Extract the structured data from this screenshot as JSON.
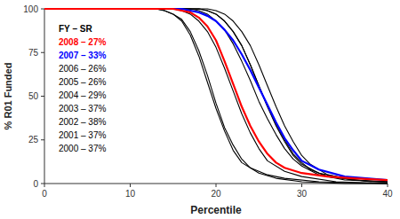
{
  "chart_data": {
    "type": "line",
    "xlabel": "Percentile",
    "ylabel": "% R01 Funded",
    "xlim": [
      0,
      40
    ],
    "ylim": [
      0,
      100
    ],
    "xticks": [
      0,
      10,
      20,
      30,
      40
    ],
    "yticks": [
      0,
      25,
      50,
      75,
      100
    ],
    "grid": false,
    "legend_title": "FY – SR",
    "series": [
      {
        "name": "2008 – 27%",
        "color": "#ff0000",
        "x": [
          0,
          15,
          16,
          17,
          18,
          19,
          20,
          21,
          22,
          23,
          24,
          25,
          26,
          27,
          28,
          30,
          33,
          36,
          40
        ],
        "values": [
          100,
          100,
          99,
          98,
          95,
          90,
          82,
          70,
          57,
          44,
          33,
          24,
          17,
          12,
          9,
          6,
          4,
          3,
          2
        ]
      },
      {
        "name": "2007 – 33%",
        "color": "#0000ff",
        "x": [
          0,
          16,
          17,
          18,
          19,
          20,
          21,
          22,
          23,
          24,
          25,
          26,
          27,
          28,
          29,
          30,
          32,
          35,
          40
        ],
        "values": [
          100,
          100,
          99,
          98,
          96,
          93,
          88,
          82,
          74,
          65,
          55,
          45,
          35,
          26,
          19,
          13,
          8,
          4,
          2
        ]
      },
      {
        "name": "2006 – 26%",
        "color": "#000000",
        "x": [
          0,
          13,
          14,
          15,
          16,
          17,
          18,
          19,
          20,
          21,
          22,
          23,
          24,
          26,
          28,
          32,
          40
        ],
        "values": [
          100,
          100,
          99,
          97,
          94,
          87,
          76,
          62,
          46,
          32,
          22,
          14,
          9,
          5,
          3,
          1,
          0
        ]
      },
      {
        "name": "2005 – 26%",
        "color": "#000000",
        "x": [
          0,
          13,
          14,
          15,
          16,
          17,
          18,
          19,
          20,
          21,
          22,
          23,
          25,
          27,
          30,
          35,
          40
        ],
        "values": [
          100,
          100,
          99,
          97,
          93,
          85,
          73,
          58,
          43,
          30,
          19,
          12,
          6,
          3,
          1,
          0,
          0
        ]
      },
      {
        "name": "2004 – 29%",
        "color": "#000000",
        "x": [
          0,
          15,
          16,
          17,
          18,
          19,
          20,
          21,
          22,
          23,
          24,
          25,
          26,
          28,
          30,
          34,
          40
        ],
        "values": [
          100,
          100,
          99,
          97,
          93,
          87,
          78,
          66,
          53,
          40,
          29,
          20,
          13,
          7,
          4,
          1,
          0
        ]
      },
      {
        "name": "2003 – 37%",
        "color": "#000000",
        "x": [
          0,
          17,
          18,
          19,
          20,
          21,
          22,
          23,
          24,
          25,
          26,
          27,
          28,
          29,
          30,
          32,
          35,
          40
        ],
        "values": [
          100,
          100,
          99,
          97,
          93,
          88,
          80,
          70,
          59,
          47,
          37,
          28,
          20,
          14,
          10,
          5,
          2,
          1
        ]
      },
      {
        "name": "2002 – 38%",
        "color": "#000000",
        "x": [
          0,
          18,
          19,
          20,
          21,
          22,
          23,
          24,
          25,
          26,
          27,
          28,
          29,
          30,
          31,
          33,
          36,
          40
        ],
        "values": [
          100,
          100,
          99,
          97,
          93,
          87,
          79,
          68,
          56,
          44,
          34,
          25,
          17,
          12,
          8,
          4,
          2,
          1
        ]
      },
      {
        "name": "2001 – 37%",
        "color": "#000000",
        "x": [
          0,
          18,
          19,
          20,
          21,
          22,
          23,
          24,
          25,
          26,
          27,
          28,
          29,
          30,
          32,
          35,
          38,
          40
        ],
        "values": [
          100,
          100,
          99,
          97,
          93,
          87,
          79,
          68,
          56,
          44,
          33,
          24,
          16,
          11,
          6,
          3,
          1,
          1
        ]
      },
      {
        "name": "2000 – 37%",
        "color": "#000000",
        "x": [
          0,
          19,
          20,
          21,
          22,
          23,
          24,
          25,
          26,
          27,
          28,
          29,
          30,
          31,
          33,
          36,
          39,
          40
        ],
        "values": [
          100,
          100,
          99,
          97,
          93,
          87,
          79,
          68,
          56,
          44,
          33,
          24,
          16,
          11,
          5,
          2,
          1,
          1
        ]
      }
    ]
  }
}
